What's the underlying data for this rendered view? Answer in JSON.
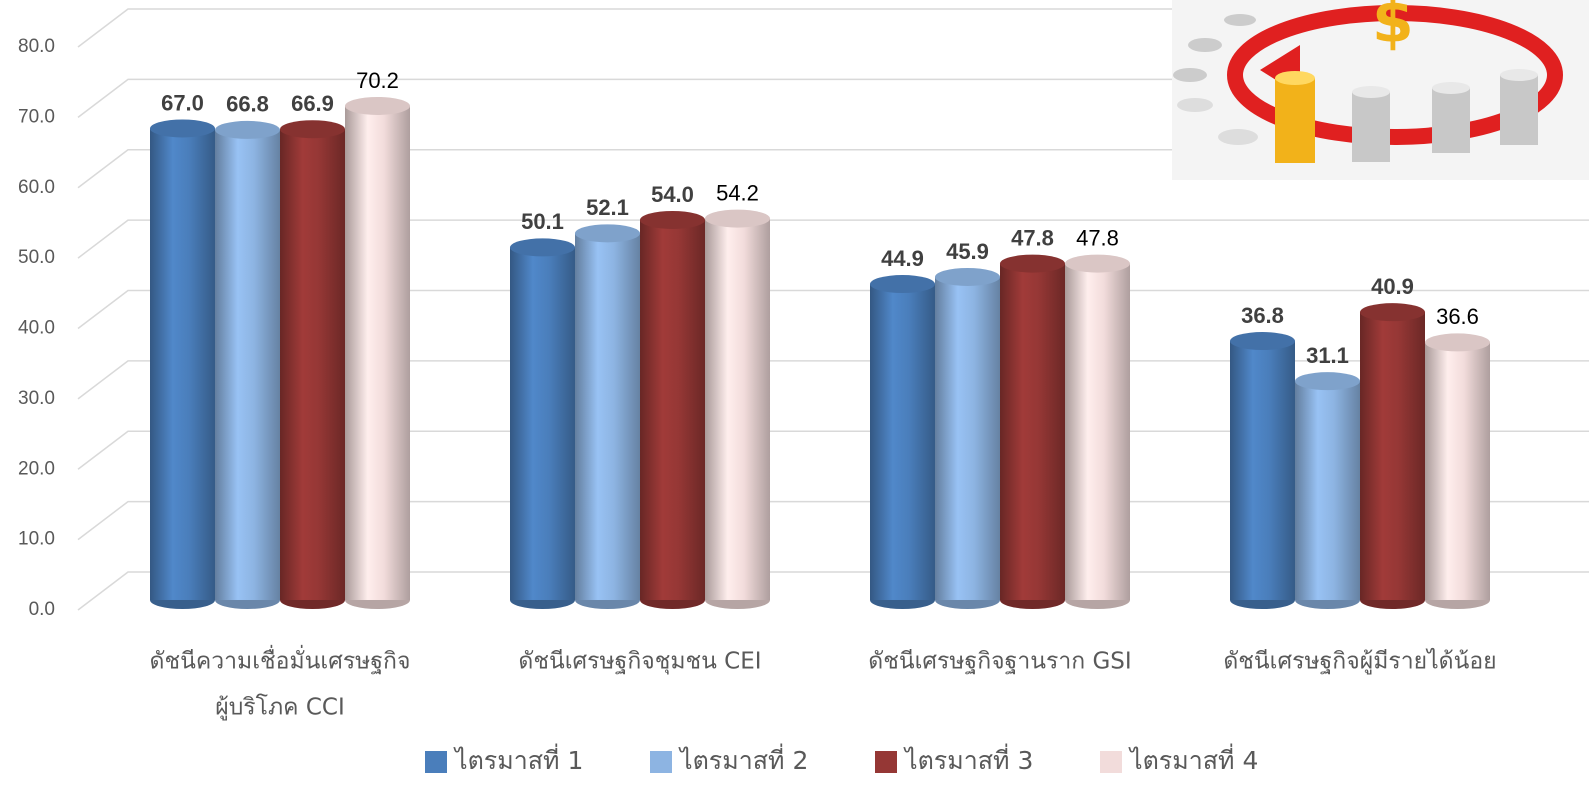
{
  "chart_data": {
    "type": "bar",
    "categories": [
      [
        "ดัชนีความเชื่อมั่นเศรษฐกิจ",
        "ผู้บริโภค  CCI"
      ],
      [
        "ดัชนีเศรษฐกิจชุมชน CEI"
      ],
      [
        "ดัชนีเศรษฐกิจฐานราก GSI"
      ],
      [
        "ดัชนีเศรษฐกิจผู้มีรายได้น้อย"
      ]
    ],
    "series": [
      {
        "name": "ไตรมาสที่ 1",
        "color": "#4a7ebb",
        "values": [
          67.0,
          50.1,
          44.9,
          36.8
        ],
        "value_labels": [
          "67.0",
          "50.1",
          "44.9",
          "36.8"
        ]
      },
      {
        "name": "ไตรมาสที่ 2",
        "color": "#8db4e2",
        "values": [
          66.8,
          52.1,
          45.9,
          31.1
        ],
        "value_labels": [
          "66.8",
          "52.1",
          "45.9",
          "31.1"
        ]
      },
      {
        "name": "ไตรมาสที่ 3",
        "color": "#953735",
        "values": [
          66.9,
          54.0,
          47.8,
          40.9
        ],
        "value_labels": [
          "66.9",
          "54.0",
          "47.8",
          "40.9"
        ]
      },
      {
        "name": "ไตรมาสที่ 4",
        "color": "#f2dcdb",
        "values": [
          70.2,
          54.2,
          47.8,
          36.6
        ],
        "value_labels": [
          "70.2",
          "54.2",
          "47.8",
          "36.6"
        ]
      }
    ],
    "ylim": [
      0,
      80
    ],
    "yticks": [
      {
        "value": 0,
        "label": "0.0"
      },
      {
        "value": 10,
        "label": "10.0"
      },
      {
        "value": 20,
        "label": "20.0"
      },
      {
        "value": 30,
        "label": "30.0"
      },
      {
        "value": 40,
        "label": "40.0"
      },
      {
        "value": 50,
        "label": "50.0"
      },
      {
        "value": 60,
        "label": "60.0"
      },
      {
        "value": 70,
        "label": "70.0"
      },
      {
        "value": 80,
        "label": "80.0"
      }
    ],
    "grid": true
  }
}
